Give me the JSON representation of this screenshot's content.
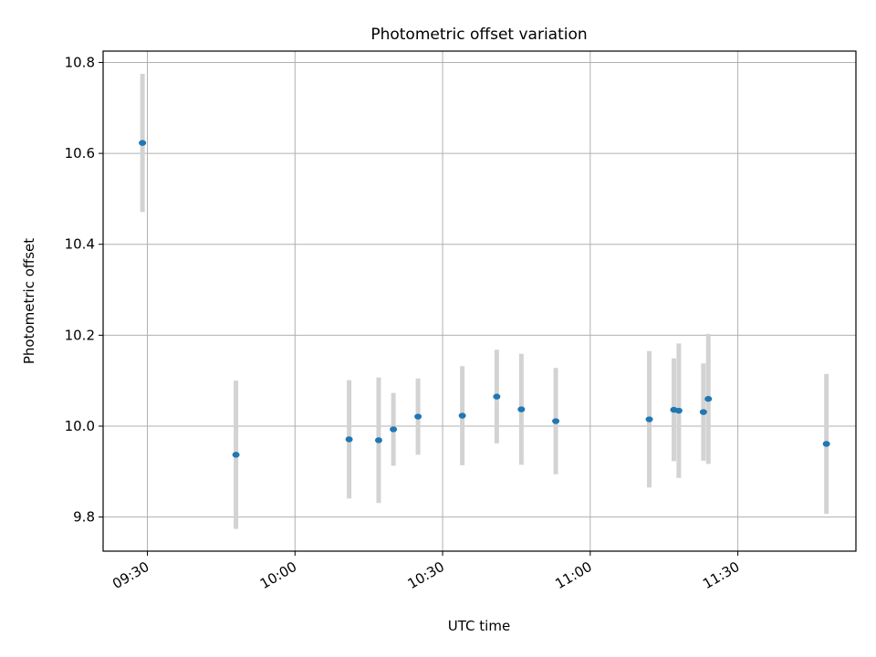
{
  "chart_data": {
    "type": "scatter",
    "title": "Photometric offset variation",
    "xlabel": "UTC time",
    "ylabel": "Photometric offset",
    "x_tick_labels": [
      "09:30",
      "10:00",
      "10:30",
      "11:00",
      "11:30"
    ],
    "x_tick_times": [
      "09:30",
      "10:00",
      "10:30",
      "11:00",
      "11:30"
    ],
    "y_ticks": [
      9.8,
      10.0,
      10.2,
      10.4,
      10.6,
      10.8
    ],
    "y_tick_labels": [
      "9.8",
      "10.0",
      "10.2",
      "10.4",
      "10.6",
      "10.8"
    ],
    "xlim": [
      "09:21",
      "11:54"
    ],
    "ylim": [
      9.725,
      10.825
    ],
    "grid": true,
    "x_axis": "time (UTC)",
    "point_color": "#1f77b4",
    "errorbar_color": "#d3d3d3",
    "series": [
      {
        "points": [
          {
            "time": "09:29",
            "y": 10.623,
            "err": 0.152
          },
          {
            "time": "09:48",
            "y": 9.937,
            "err": 0.163
          },
          {
            "time": "10:11",
            "y": 9.971,
            "err": 0.13
          },
          {
            "time": "10:17",
            "y": 9.969,
            "err": 0.138
          },
          {
            "time": "10:20",
            "y": 9.993,
            "err": 0.08
          },
          {
            "time": "10:25",
            "y": 10.021,
            "err": 0.084
          },
          {
            "time": "10:34",
            "y": 10.023,
            "err": 0.109
          },
          {
            "time": "10:41",
            "y": 10.065,
            "err": 0.103
          },
          {
            "time": "10:46",
            "y": 10.037,
            "err": 0.122
          },
          {
            "time": "10:53",
            "y": 10.011,
            "err": 0.117
          },
          {
            "time": "11:12",
            "y": 10.015,
            "err": 0.15
          },
          {
            "time": "11:17",
            "y": 10.036,
            "err": 0.113
          },
          {
            "time": "11:18",
            "y": 10.034,
            "err": 0.148
          },
          {
            "time": "11:23",
            "y": 10.031,
            "err": 0.107
          },
          {
            "time": "11:24",
            "y": 10.06,
            "err": 0.143
          },
          {
            "time": "11:48",
            "y": 9.961,
            "err": 0.154
          }
        ]
      }
    ]
  }
}
